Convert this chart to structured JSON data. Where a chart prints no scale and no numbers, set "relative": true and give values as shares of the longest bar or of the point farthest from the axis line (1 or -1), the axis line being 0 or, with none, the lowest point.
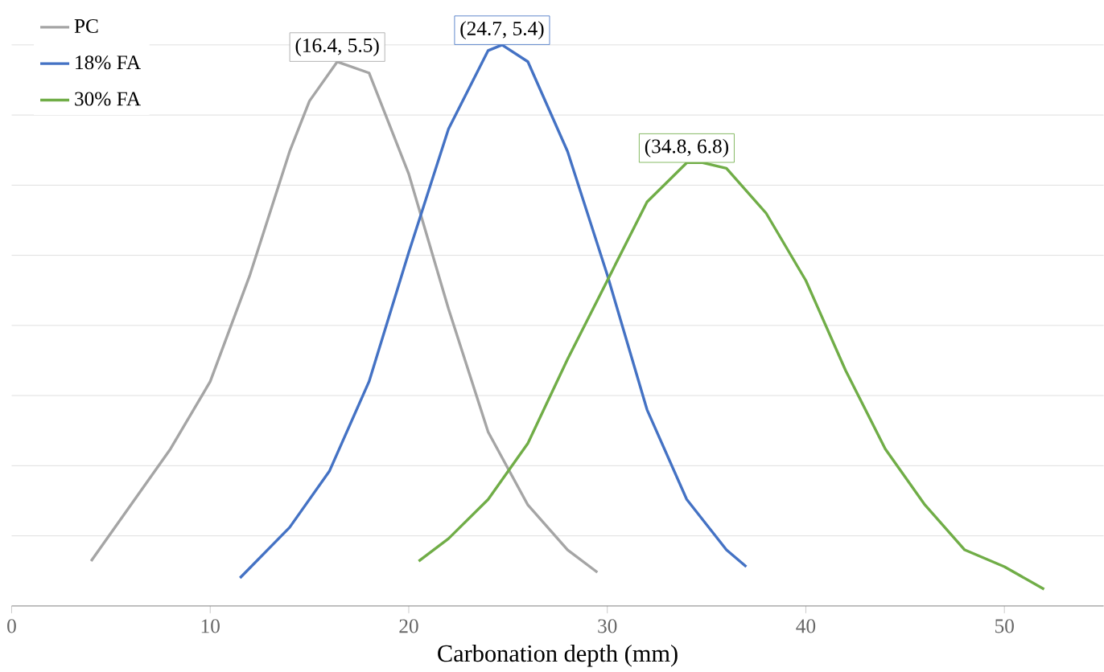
{
  "chart_data": {
    "type": "line",
    "relative": true,
    "xlabel": "Carbonation depth (mm)",
    "xlim": [
      0,
      55
    ],
    "xticks": [
      0,
      10,
      20,
      30,
      40,
      50
    ],
    "grid": "y",
    "legend": "top left",
    "marker": "none",
    "line_style": "solid",
    "annotations": [
      "(16.4, 5.5)",
      "(24.7, 5.4)",
      "(34.8, 6.8)"
    ],
    "series": [
      {
        "name": "PC",
        "color": "#a5a5a5",
        "x": [
          4,
          6,
          8,
          10,
          12,
          14,
          15,
          16.4,
          18,
          20,
          22,
          24,
          26,
          28,
          29.5
        ],
        "values": [
          0.08,
          0.18,
          0.28,
          0.4,
          0.59,
          0.81,
          0.9,
          0.97,
          0.95,
          0.77,
          0.53,
          0.31,
          0.18,
          0.1,
          0.06
        ]
      },
      {
        "name": "18% FA",
        "color": "#4472c4",
        "x": [
          11.5,
          14,
          16,
          18,
          20,
          22,
          24,
          24.7,
          26,
          28,
          30,
          32,
          34,
          36,
          37
        ],
        "values": [
          0.05,
          0.14,
          0.24,
          0.4,
          0.63,
          0.85,
          0.99,
          1,
          0.97,
          0.81,
          0.59,
          0.35,
          0.19,
          0.1,
          0.07
        ]
      },
      {
        "name": "30% FA",
        "color": "#70ad47",
        "x": [
          20.5,
          22,
          24,
          26,
          28,
          30,
          32,
          34,
          34.8,
          36,
          38,
          40,
          42,
          44,
          46,
          48,
          50,
          52
        ],
        "values": [
          0.08,
          0.12,
          0.19,
          0.29,
          0.44,
          0.58,
          0.72,
          0.79,
          0.79,
          0.78,
          0.7,
          0.58,
          0.42,
          0.28,
          0.18,
          0.1,
          0.07,
          0.03
        ]
      }
    ]
  }
}
